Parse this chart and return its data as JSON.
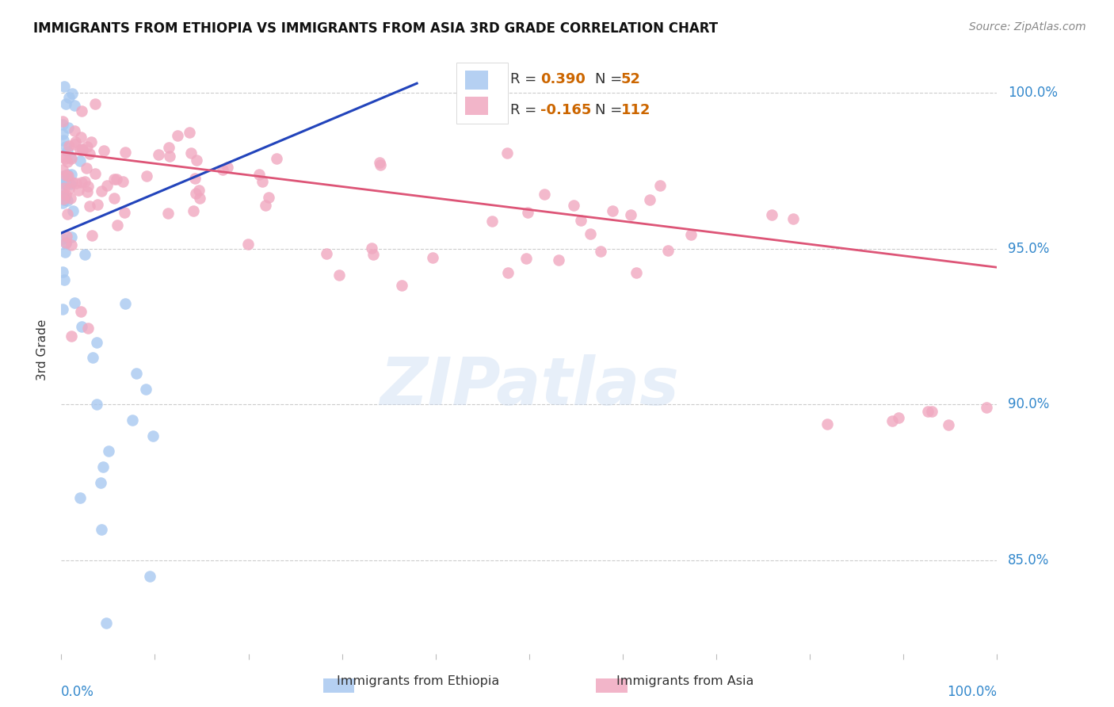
{
  "title": "IMMIGRANTS FROM ETHIOPIA VS IMMIGRANTS FROM ASIA 3RD GRADE CORRELATION CHART",
  "source": "Source: ZipAtlas.com",
  "ylabel": "3rd Grade",
  "blue_color": "#a8c8f0",
  "pink_color": "#f0a8c0",
  "blue_line_color": "#2244bb",
  "pink_line_color": "#dd5577",
  "title_color": "#111111",
  "source_color": "#888888",
  "axis_label_color": "#333333",
  "tick_color": "#3388cc",
  "grid_color": "#cccccc",
  "watermark": "ZIPatlas",
  "R_blue": "0.390",
  "N_blue": "52",
  "R_pink": "-0.165",
  "N_pink": "112",
  "xlim": [
    0.0,
    1.0
  ],
  "ylim": [
    0.82,
    1.015
  ],
  "ytick_values": [
    0.85,
    0.9,
    0.95,
    1.0
  ],
  "ytick_labels": [
    "85.0%",
    "90.0%",
    "95.0%",
    "100.0%"
  ],
  "blue_line_x": [
    0.0,
    0.38
  ],
  "blue_line_y": [
    0.955,
    1.003
  ],
  "pink_line_x": [
    0.0,
    1.0
  ],
  "pink_line_y": [
    0.981,
    0.944
  ],
  "legend_R_color": "#cc6600",
  "legend_N_color": "#cc6600",
  "bottom_label_blue": "Immigrants from Ethiopia",
  "bottom_label_pink": "Immigrants from Asia"
}
